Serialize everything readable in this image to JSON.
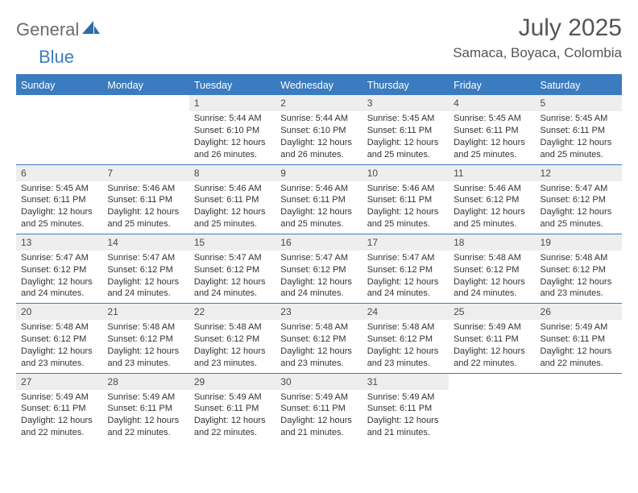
{
  "brand": {
    "part1": "General",
    "part2": "Blue"
  },
  "title": "July 2025",
  "location": "Samaca, Boyaca, Colombia",
  "header_color": "#3b7bbf",
  "daynum_bg": "#eeeeee",
  "text_color": "#333333",
  "days": [
    "Sunday",
    "Monday",
    "Tuesday",
    "Wednesday",
    "Thursday",
    "Friday",
    "Saturday"
  ],
  "weeks": [
    [
      {
        "n": "",
        "sr": "",
        "ss": "",
        "dl": "",
        "empty": true
      },
      {
        "n": "",
        "sr": "",
        "ss": "",
        "dl": "",
        "empty": true
      },
      {
        "n": "1",
        "sr": "Sunrise: 5:44 AM",
        "ss": "Sunset: 6:10 PM",
        "dl": "Daylight: 12 hours and 26 minutes."
      },
      {
        "n": "2",
        "sr": "Sunrise: 5:44 AM",
        "ss": "Sunset: 6:10 PM",
        "dl": "Daylight: 12 hours and 26 minutes."
      },
      {
        "n": "3",
        "sr": "Sunrise: 5:45 AM",
        "ss": "Sunset: 6:11 PM",
        "dl": "Daylight: 12 hours and 25 minutes."
      },
      {
        "n": "4",
        "sr": "Sunrise: 5:45 AM",
        "ss": "Sunset: 6:11 PM",
        "dl": "Daylight: 12 hours and 25 minutes."
      },
      {
        "n": "5",
        "sr": "Sunrise: 5:45 AM",
        "ss": "Sunset: 6:11 PM",
        "dl": "Daylight: 12 hours and 25 minutes."
      }
    ],
    [
      {
        "n": "6",
        "sr": "Sunrise: 5:45 AM",
        "ss": "Sunset: 6:11 PM",
        "dl": "Daylight: 12 hours and 25 minutes."
      },
      {
        "n": "7",
        "sr": "Sunrise: 5:46 AM",
        "ss": "Sunset: 6:11 PM",
        "dl": "Daylight: 12 hours and 25 minutes."
      },
      {
        "n": "8",
        "sr": "Sunrise: 5:46 AM",
        "ss": "Sunset: 6:11 PM",
        "dl": "Daylight: 12 hours and 25 minutes."
      },
      {
        "n": "9",
        "sr": "Sunrise: 5:46 AM",
        "ss": "Sunset: 6:11 PM",
        "dl": "Daylight: 12 hours and 25 minutes."
      },
      {
        "n": "10",
        "sr": "Sunrise: 5:46 AM",
        "ss": "Sunset: 6:11 PM",
        "dl": "Daylight: 12 hours and 25 minutes."
      },
      {
        "n": "11",
        "sr": "Sunrise: 5:46 AM",
        "ss": "Sunset: 6:12 PM",
        "dl": "Daylight: 12 hours and 25 minutes."
      },
      {
        "n": "12",
        "sr": "Sunrise: 5:47 AM",
        "ss": "Sunset: 6:12 PM",
        "dl": "Daylight: 12 hours and 25 minutes."
      }
    ],
    [
      {
        "n": "13",
        "sr": "Sunrise: 5:47 AM",
        "ss": "Sunset: 6:12 PM",
        "dl": "Daylight: 12 hours and 24 minutes."
      },
      {
        "n": "14",
        "sr": "Sunrise: 5:47 AM",
        "ss": "Sunset: 6:12 PM",
        "dl": "Daylight: 12 hours and 24 minutes."
      },
      {
        "n": "15",
        "sr": "Sunrise: 5:47 AM",
        "ss": "Sunset: 6:12 PM",
        "dl": "Daylight: 12 hours and 24 minutes."
      },
      {
        "n": "16",
        "sr": "Sunrise: 5:47 AM",
        "ss": "Sunset: 6:12 PM",
        "dl": "Daylight: 12 hours and 24 minutes."
      },
      {
        "n": "17",
        "sr": "Sunrise: 5:47 AM",
        "ss": "Sunset: 6:12 PM",
        "dl": "Daylight: 12 hours and 24 minutes."
      },
      {
        "n": "18",
        "sr": "Sunrise: 5:48 AM",
        "ss": "Sunset: 6:12 PM",
        "dl": "Daylight: 12 hours and 24 minutes."
      },
      {
        "n": "19",
        "sr": "Sunrise: 5:48 AM",
        "ss": "Sunset: 6:12 PM",
        "dl": "Daylight: 12 hours and 23 minutes."
      }
    ],
    [
      {
        "n": "20",
        "sr": "Sunrise: 5:48 AM",
        "ss": "Sunset: 6:12 PM",
        "dl": "Daylight: 12 hours and 23 minutes."
      },
      {
        "n": "21",
        "sr": "Sunrise: 5:48 AM",
        "ss": "Sunset: 6:12 PM",
        "dl": "Daylight: 12 hours and 23 minutes."
      },
      {
        "n": "22",
        "sr": "Sunrise: 5:48 AM",
        "ss": "Sunset: 6:12 PM",
        "dl": "Daylight: 12 hours and 23 minutes."
      },
      {
        "n": "23",
        "sr": "Sunrise: 5:48 AM",
        "ss": "Sunset: 6:12 PM",
        "dl": "Daylight: 12 hours and 23 minutes."
      },
      {
        "n": "24",
        "sr": "Sunrise: 5:48 AM",
        "ss": "Sunset: 6:12 PM",
        "dl": "Daylight: 12 hours and 23 minutes."
      },
      {
        "n": "25",
        "sr": "Sunrise: 5:49 AM",
        "ss": "Sunset: 6:11 PM",
        "dl": "Daylight: 12 hours and 22 minutes."
      },
      {
        "n": "26",
        "sr": "Sunrise: 5:49 AM",
        "ss": "Sunset: 6:11 PM",
        "dl": "Daylight: 12 hours and 22 minutes."
      }
    ],
    [
      {
        "n": "27",
        "sr": "Sunrise: 5:49 AM",
        "ss": "Sunset: 6:11 PM",
        "dl": "Daylight: 12 hours and 22 minutes."
      },
      {
        "n": "28",
        "sr": "Sunrise: 5:49 AM",
        "ss": "Sunset: 6:11 PM",
        "dl": "Daylight: 12 hours and 22 minutes."
      },
      {
        "n": "29",
        "sr": "Sunrise: 5:49 AM",
        "ss": "Sunset: 6:11 PM",
        "dl": "Daylight: 12 hours and 22 minutes."
      },
      {
        "n": "30",
        "sr": "Sunrise: 5:49 AM",
        "ss": "Sunset: 6:11 PM",
        "dl": "Daylight: 12 hours and 21 minutes."
      },
      {
        "n": "31",
        "sr": "Sunrise: 5:49 AM",
        "ss": "Sunset: 6:11 PM",
        "dl": "Daylight: 12 hours and 21 minutes."
      },
      {
        "n": "",
        "sr": "",
        "ss": "",
        "dl": "",
        "empty": true
      },
      {
        "n": "",
        "sr": "",
        "ss": "",
        "dl": "",
        "empty": true
      }
    ]
  ]
}
